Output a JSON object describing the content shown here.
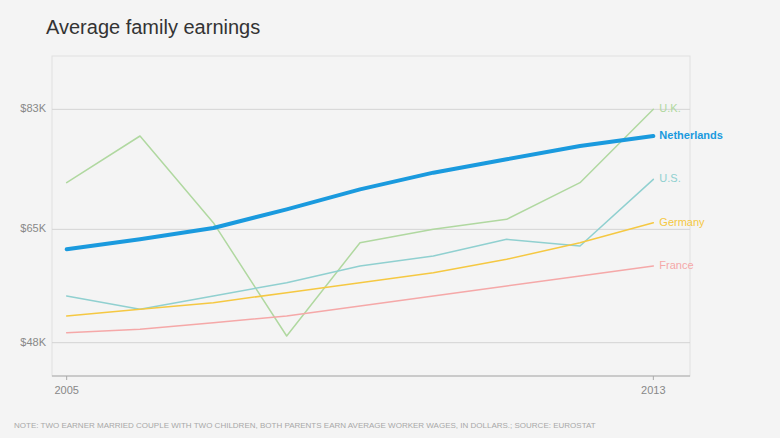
{
  "chart_data": {
    "type": "line",
    "title": "Average family earnings",
    "annotations": [
      "NOTE: TWO EARNER MARRIED COUPLE WITH TWO CHILDREN, BOTH PARENTS EARN AVERAGE WORKER WAGES, IN DOLLARS.;  SOURCE: EUROSTAT"
    ],
    "x": [
      2005,
      2006,
      2007,
      2008,
      2009,
      2010,
      2011,
      2012,
      2013
    ],
    "series": [
      {
        "name": "U.K.",
        "color": "#b0d8a0",
        "values": [
          72000,
          79000,
          66000,
          49000,
          63000,
          65000,
          66500,
          72000,
          83000
        ]
      },
      {
        "name": "U.S.",
        "color": "#90d0d0",
        "values": [
          55000,
          53000,
          55000,
          57000,
          59500,
          61000,
          63500,
          62500,
          72500
        ]
      },
      {
        "name": "Germany",
        "color": "#f5c842",
        "values": [
          52000,
          53000,
          54000,
          55500,
          57000,
          58500,
          60500,
          63000,
          66000
        ]
      },
      {
        "name": "France",
        "color": "#f5a8a8",
        "values": [
          49500,
          50000,
          51000,
          52000,
          53500,
          55000,
          56500,
          58000,
          59500
        ]
      },
      {
        "name": "Netherlands",
        "color": "#1a9ade",
        "values": [
          62000,
          63500,
          65200,
          68000,
          71000,
          73500,
          75500,
          77500,
          79000
        ]
      }
    ],
    "xlim": [
      2004.8,
      2013.5
    ],
    "xticks": [
      2005,
      2013
    ],
    "ylim": [
      43000,
      91000
    ],
    "yticks": [
      {
        "value": 48000,
        "label": "$48K"
      },
      {
        "value": 65000,
        "label": "$65K"
      },
      {
        "value": 83000,
        "label": "$83K"
      }
    ],
    "grid": true
  }
}
